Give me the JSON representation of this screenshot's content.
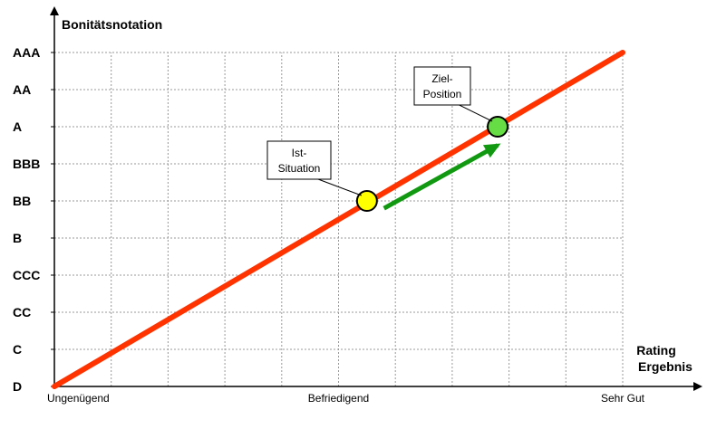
{
  "chart_data": {
    "type": "line",
    "title": "",
    "ylabel": "Bonitätsnotation",
    "xlabel_line1": "Rating",
    "xlabel_line2": "Ergebnis",
    "y_categories": [
      "D",
      "C",
      "CC",
      "CCC",
      "B",
      "BB",
      "BBB",
      "A",
      "AA",
      "AAA"
    ],
    "x_tick_labels": [
      {
        "label": "Ungenügend",
        "x": 0
      },
      {
        "label": "Befriedigend",
        "x": 0.5
      },
      {
        "label": "Sehr Gut",
        "x": 1.0
      }
    ],
    "xlim": [
      0,
      1.12
    ],
    "ylim": [
      0,
      9
    ],
    "x_grid_step": 0.1,
    "grid": true,
    "line": {
      "x": [
        0,
        1.0
      ],
      "y": [
        0,
        9
      ],
      "color": "#ff3300"
    },
    "points": [
      {
        "name": "ist",
        "label_line1": "Ist-",
        "label_line2": "Situation",
        "x": 0.55,
        "y": 5.0,
        "color": "#ffff00"
      },
      {
        "name": "ziel",
        "label_line1": "Ziel-",
        "label_line2": "Position",
        "x": 0.78,
        "y": 7.0,
        "color": "#66dd44"
      }
    ],
    "arrow": {
      "from": [
        0.58,
        4.8
      ],
      "to": [
        0.78,
        6.5
      ],
      "color": "#119911"
    }
  }
}
